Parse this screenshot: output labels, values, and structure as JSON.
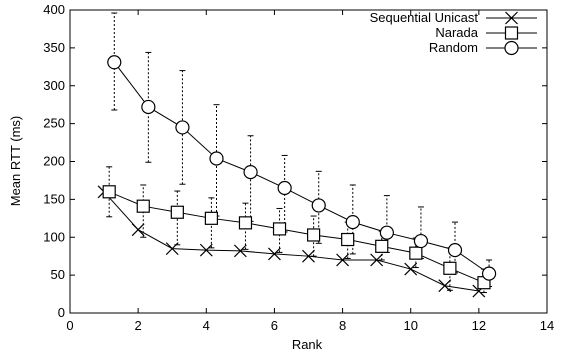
{
  "chart_data": {
    "type": "line",
    "title": "",
    "xlabel": "Rank",
    "ylabel": "Mean RTT (ms)",
    "xlim": [
      0,
      14
    ],
    "ylim": [
      0,
      400
    ],
    "xticks": [
      0,
      2,
      4,
      6,
      8,
      10,
      12,
      14
    ],
    "yticks": [
      0,
      50,
      100,
      150,
      200,
      250,
      300,
      350,
      400
    ],
    "grid": false,
    "legend_position": "top-right",
    "series": [
      {
        "name": "Sequential Unicast",
        "marker": "x",
        "x": [
          1.0,
          2.0,
          3.0,
          4.0,
          5.0,
          6.0,
          7.0,
          8.0,
          9.0,
          10.0,
          11.0,
          12.0
        ],
        "values": [
          160,
          110,
          85,
          83,
          82,
          78,
          75,
          70,
          70,
          58,
          36,
          29
        ]
      },
      {
        "name": "Narada",
        "marker": "square",
        "x": [
          1.15,
          2.15,
          3.15,
          4.15,
          5.15,
          6.15,
          7.15,
          8.15,
          9.15,
          10.15,
          11.15,
          12.15
        ],
        "values": [
          160,
          141,
          133,
          125,
          119,
          111,
          103,
          97,
          88,
          79,
          59,
          40
        ],
        "err_low": [
          127,
          100,
          90,
          86,
          84,
          80,
          75,
          72,
          70,
          60,
          30,
          27
        ],
        "err_high": [
          193,
          169,
          161,
          152,
          145,
          138,
          128,
          120,
          108,
          99,
          86,
          58
        ]
      },
      {
        "name": "Random",
        "marker": "circle",
        "x": [
          1.3,
          2.3,
          3.3,
          4.3,
          5.3,
          6.3,
          7.3,
          8.3,
          9.3,
          10.3,
          11.3,
          12.3
        ],
        "values": [
          331,
          272,
          245,
          204,
          186,
          165,
          142,
          120,
          106,
          95,
          83,
          52
        ],
        "err_low": [
          268,
          199,
          170,
          128,
          121,
          107,
          92,
          78,
          80,
          72,
          53,
          35
        ],
        "err_high": [
          396,
          344,
          320,
          275,
          234,
          208,
          187,
          169,
          155,
          140,
          120,
          70
        ]
      }
    ]
  }
}
